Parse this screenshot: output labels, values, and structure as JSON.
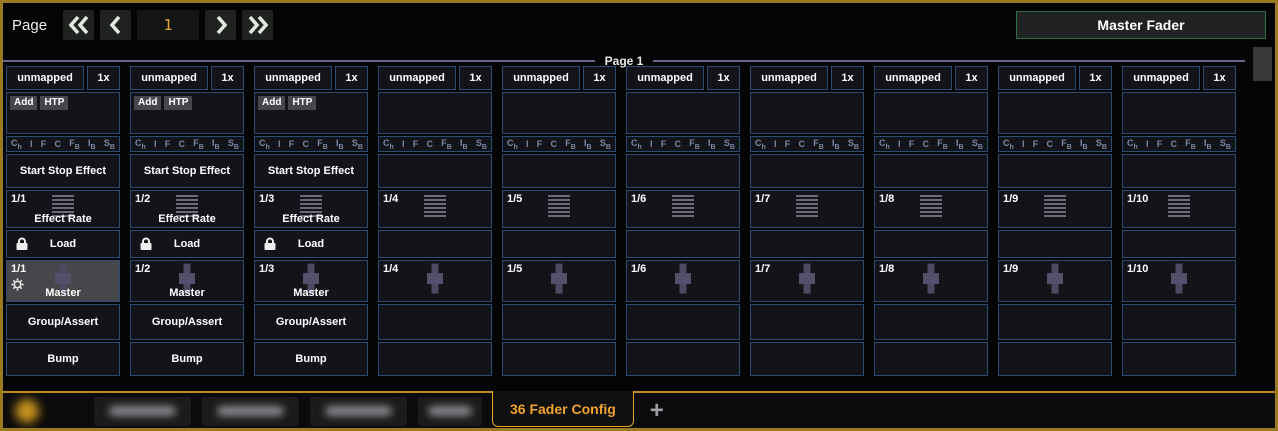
{
  "topbar": {
    "page_label": "Page",
    "page_value": "1",
    "master_fader_label": "Master Fader",
    "icons": {
      "first": "double-chevron-left",
      "prev": "chevron-left",
      "next": "chevron-right",
      "last": "double-chevron-right"
    }
  },
  "page_section": {
    "legend": "Page 1"
  },
  "strip_common": {
    "unmapped_label": "unmapped",
    "scale_label": "1x",
    "param_letters": [
      {
        "m": "C",
        "s": "h"
      },
      {
        "m": "I",
        "s": ""
      },
      {
        "m": "F",
        "s": ""
      },
      {
        "m": "C",
        "s": ""
      },
      {
        "m": "F",
        "s": "B"
      },
      {
        "m": "I",
        "s": "B"
      },
      {
        "m": "S",
        "s": "B"
      }
    ],
    "icons": {
      "rate": "fader-lines",
      "master": "crossfader",
      "lock": "padlock",
      "gear": "gear"
    }
  },
  "strips": [
    {
      "rate_id": "1/1",
      "master_id": "1/1",
      "chips": [
        "Add",
        "HTP"
      ],
      "effect_label": "Start Stop Effect",
      "rate_label": "Effect Rate",
      "load_label": "Load",
      "has_lock": true,
      "master_label": "Master",
      "has_gear": true,
      "selected_master": true,
      "group_label": "Group/Assert",
      "bump_label": "Bump"
    },
    {
      "rate_id": "1/2",
      "master_id": "1/2",
      "chips": [
        "Add",
        "HTP"
      ],
      "effect_label": "Start Stop Effect",
      "rate_label": "Effect Rate",
      "load_label": "Load",
      "has_lock": true,
      "master_label": "Master",
      "has_gear": false,
      "selected_master": false,
      "group_label": "Group/Assert",
      "bump_label": "Bump"
    },
    {
      "rate_id": "1/3",
      "master_id": "1/3",
      "chips": [
        "Add",
        "HTP"
      ],
      "effect_label": "Start Stop Effect",
      "rate_label": "Effect Rate",
      "load_label": "Load",
      "has_lock": true,
      "master_label": "Master",
      "has_gear": false,
      "selected_master": false,
      "group_label": "Group/Assert",
      "bump_label": "Bump"
    },
    {
      "rate_id": "1/4",
      "master_id": "1/4",
      "chips": [],
      "effect_label": "",
      "rate_label": "",
      "load_label": "",
      "has_lock": false,
      "master_label": "",
      "has_gear": false,
      "selected_master": false,
      "group_label": "",
      "bump_label": ""
    },
    {
      "rate_id": "1/5",
      "master_id": "1/5",
      "chips": [],
      "effect_label": "",
      "rate_label": "",
      "load_label": "",
      "has_lock": false,
      "master_label": "",
      "has_gear": false,
      "selected_master": false,
      "group_label": "",
      "bump_label": ""
    },
    {
      "rate_id": "1/6",
      "master_id": "1/6",
      "chips": [],
      "effect_label": "",
      "rate_label": "",
      "load_label": "",
      "has_lock": false,
      "master_label": "",
      "has_gear": false,
      "selected_master": false,
      "group_label": "",
      "bump_label": ""
    },
    {
      "rate_id": "1/7",
      "master_id": "1/7",
      "chips": [],
      "effect_label": "",
      "rate_label": "",
      "load_label": "",
      "has_lock": false,
      "master_label": "",
      "has_gear": false,
      "selected_master": false,
      "group_label": "",
      "bump_label": ""
    },
    {
      "rate_id": "1/8",
      "master_id": "1/8",
      "chips": [],
      "effect_label": "",
      "rate_label": "",
      "load_label": "",
      "has_lock": false,
      "master_label": "",
      "has_gear": false,
      "selected_master": false,
      "group_label": "",
      "bump_label": ""
    },
    {
      "rate_id": "1/9",
      "master_id": "1/9",
      "chips": [],
      "effect_label": "",
      "rate_label": "",
      "load_label": "",
      "has_lock": false,
      "master_label": "",
      "has_gear": false,
      "selected_master": false,
      "group_label": "",
      "bump_label": ""
    },
    {
      "rate_id": "1/10",
      "master_id": "1/10",
      "chips": [],
      "effect_label": "",
      "rate_label": "",
      "load_label": "",
      "has_lock": false,
      "master_label": "",
      "has_gear": false,
      "selected_master": false,
      "group_label": "",
      "bump_label": ""
    }
  ],
  "tabbar": {
    "active_tab_label": "36 Fader Config",
    "add_tab_label": "+",
    "blurred_tabs": 4
  },
  "colors": {
    "frame_orange": "#9a7a1e",
    "accent_orange": "#f0a32f",
    "strip_border_blue": "#2b4d74",
    "divider_purple": "#6b668f",
    "master_fader_border_green": "#2d6e47",
    "selected_row_gray": "#47474b",
    "fader_icon_purple": "#564f6b",
    "param_letter_slate": "#7e88a6",
    "page_number_orange": "#e8a33d"
  }
}
